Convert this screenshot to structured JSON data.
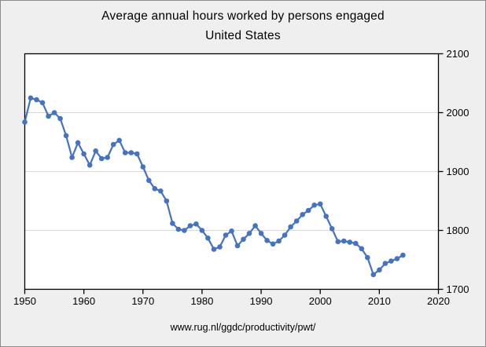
{
  "colors": {
    "canvas_bg": "#efefef",
    "plot_bg": "#ffffff",
    "grid": "#d6d6d6",
    "axis": "#000000",
    "outer_border": "#8c8c8c",
    "series": "#4472c4",
    "text": "#000000"
  },
  "chart_data": {
    "type": "line",
    "title": "Average annual hours worked by persons engaged",
    "subtitle": "United States",
    "source_caption": "www.rug.nl/ggdc/productivity/pwt/",
    "series_name": "Average annual hours worked by persons engaged, United States",
    "x": [
      1950,
      1951,
      1952,
      1953,
      1954,
      1955,
      1956,
      1957,
      1958,
      1959,
      1960,
      1961,
      1962,
      1963,
      1964,
      1965,
      1966,
      1967,
      1968,
      1969,
      1970,
      1971,
      1972,
      1973,
      1974,
      1975,
      1976,
      1977,
      1978,
      1979,
      1980,
      1981,
      1982,
      1983,
      1984,
      1985,
      1986,
      1987,
      1988,
      1989,
      1990,
      1991,
      1992,
      1993,
      1994,
      1995,
      1996,
      1997,
      1998,
      1999,
      2000,
      2001,
      2002,
      2003,
      2004,
      2005,
      2006,
      2007,
      2008,
      2009,
      2010,
      2011,
      2012,
      2013,
      2014
    ],
    "values": [
      1984,
      2025,
      2022,
      2017,
      1994,
      2000,
      1990,
      1961,
      1924,
      1949,
      1930,
      1911,
      1935,
      1922,
      1924,
      1946,
      1953,
      1932,
      1932,
      1930,
      1908,
      1885,
      1871,
      1867,
      1850,
      1812,
      1802,
      1800,
      1808,
      1811,
      1800,
      1787,
      1768,
      1772,
      1792,
      1799,
      1774,
      1785,
      1795,
      1808,
      1795,
      1783,
      1777,
      1782,
      1792,
      1806,
      1816,
      1827,
      1834,
      1843,
      1845,
      1824,
      1803,
      1781,
      1782,
      1780,
      1778,
      1769,
      1754,
      1725,
      1733,
      1744,
      1748,
      1752,
      1758
    ],
    "xlim": [
      1950,
      2020
    ],
    "ylim": [
      1700,
      2100
    ],
    "x_ticks": [
      1950,
      1960,
      1970,
      1980,
      1990,
      2000,
      2010,
      2020
    ],
    "y_ticks": [
      1700,
      1800,
      1900,
      2000,
      2100
    ],
    "grid_y": [
      1800,
      1900,
      2000
    ],
    "y_axis_side": "right",
    "grid": "horizontal",
    "legend": "none",
    "marker": "circle",
    "line_color": "#4472c4"
  }
}
